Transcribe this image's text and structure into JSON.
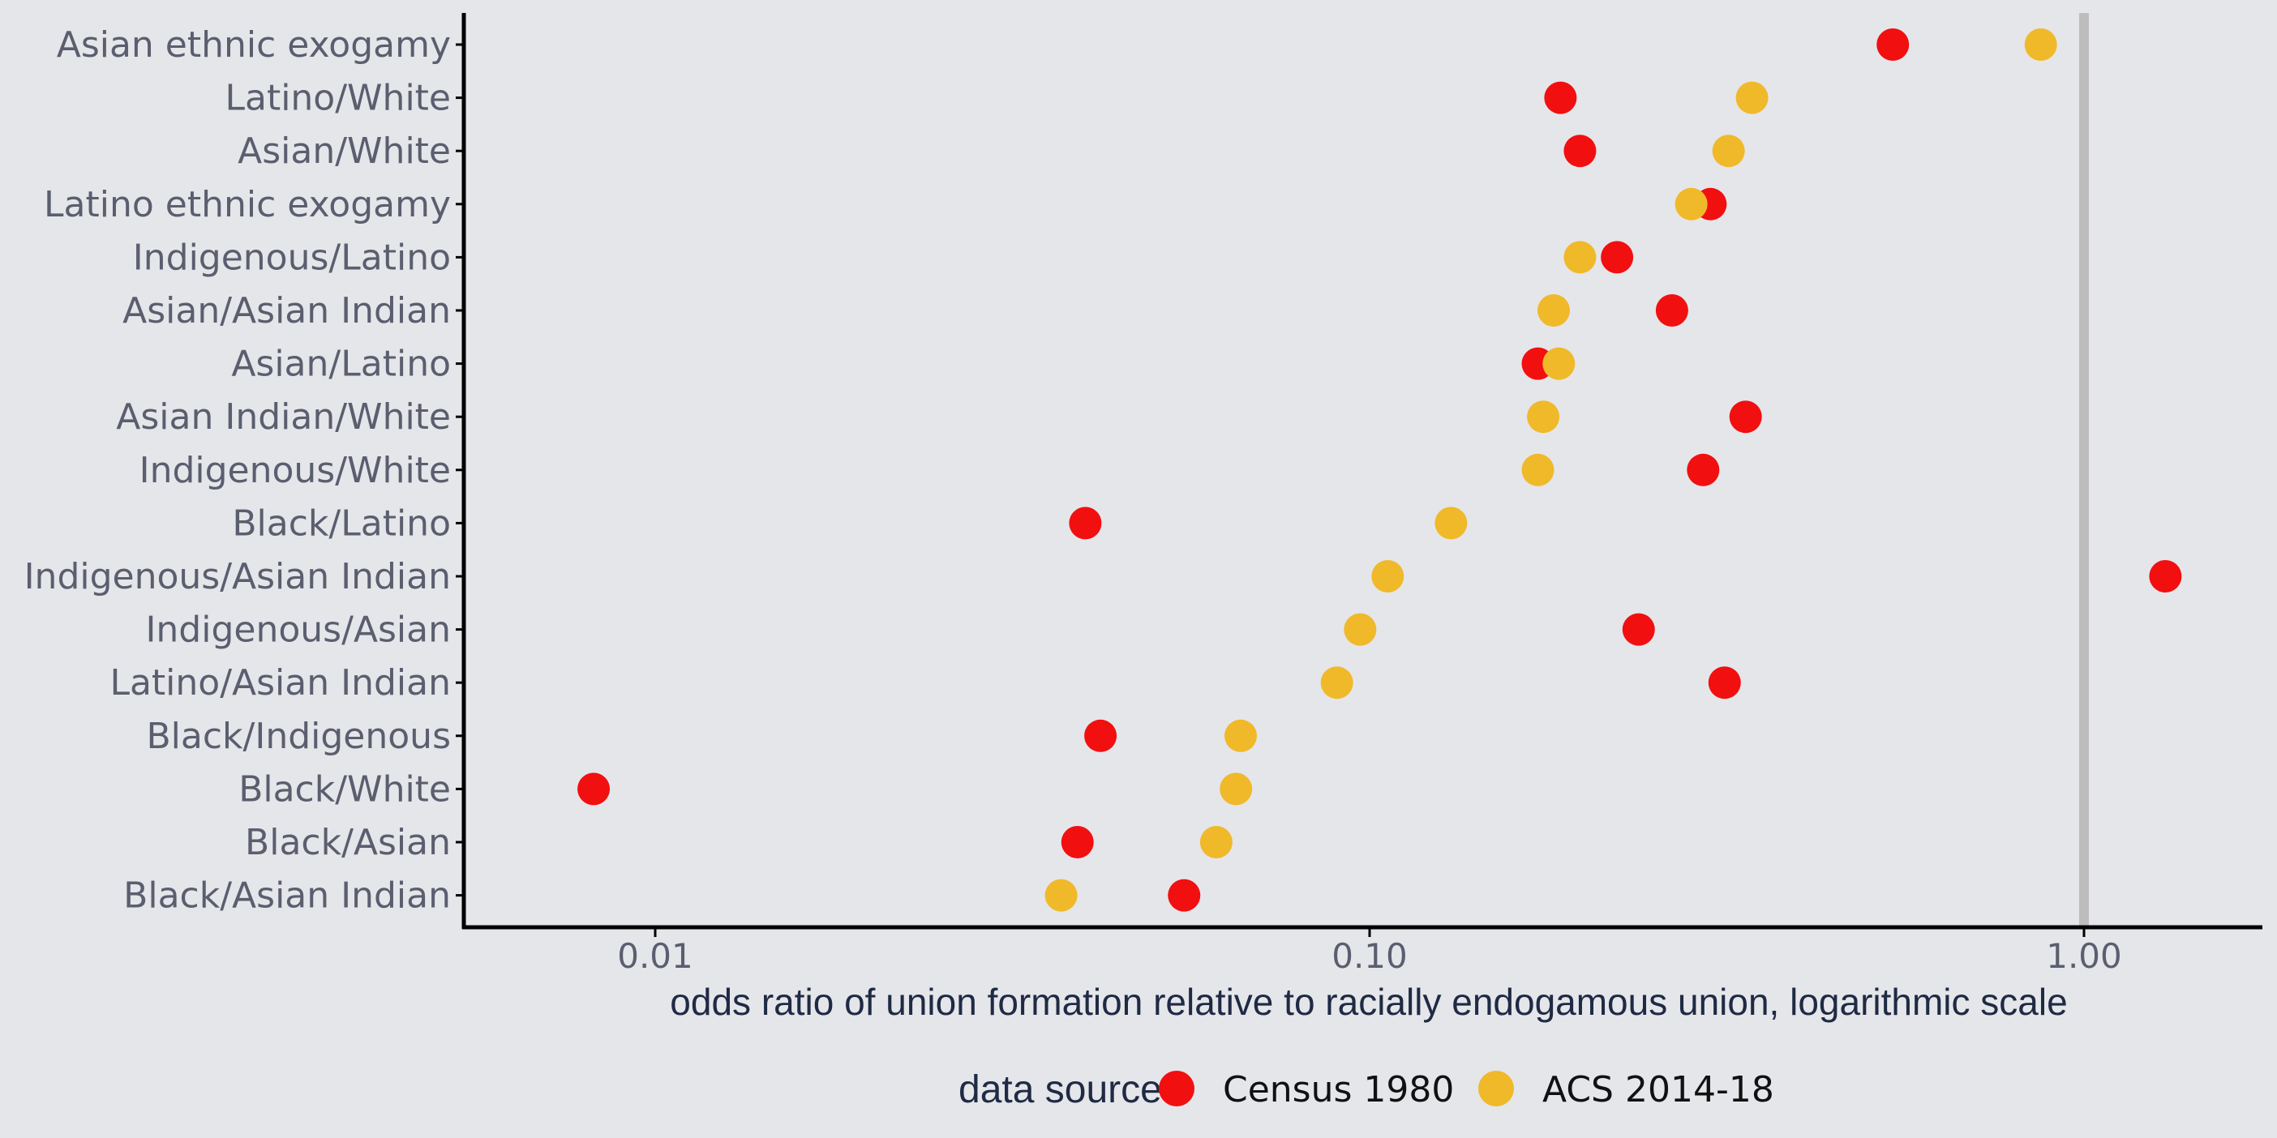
{
  "chart_data": {
    "type": "scatter",
    "xscale": "log",
    "xlim": [
      0.005,
      1.8
    ],
    "x_ticks": [
      0.01,
      0.1,
      1.0
    ],
    "x_tick_labels": [
      "0.01",
      "0.10",
      "1.00"
    ],
    "xlabel": "odds ratio of union formation relative to racially endogamous union, logarithmic scale",
    "reference_line": 1.0,
    "categories": [
      "Asian ethnic exogamy",
      "Latino/White",
      "Asian/White",
      "Latino ethnic exogamy",
      "Indigenous/Latino",
      "Asian/Asian Indian",
      "Asian/Latino",
      "Asian Indian/White",
      "Indigenous/White",
      "Black/Latino",
      "Indigenous/Asian Indian",
      "Indigenous/Asian",
      "Latino/Asian Indian",
      "Black/Indigenous",
      "Black/White",
      "Black/Asian",
      "Black/Asian Indian"
    ],
    "series": [
      {
        "name": "Census 1980",
        "color": "#f20f10",
        "values": [
          0.54,
          0.185,
          0.197,
          0.3,
          0.222,
          0.265,
          0.172,
          0.336,
          0.293,
          0.04,
          1.3,
          0.238,
          0.314,
          0.042,
          0.0082,
          0.039,
          0.055
        ]
      },
      {
        "name": "ACS 2014-18",
        "color": "#f0b929",
        "values": [
          0.87,
          0.343,
          0.318,
          0.282,
          0.197,
          0.181,
          0.184,
          0.175,
          0.172,
          0.13,
          0.106,
          0.097,
          0.09,
          0.066,
          0.065,
          0.061,
          0.037
        ]
      }
    ],
    "legend": {
      "title": "data source",
      "position": "bottom"
    },
    "grid": false
  }
}
